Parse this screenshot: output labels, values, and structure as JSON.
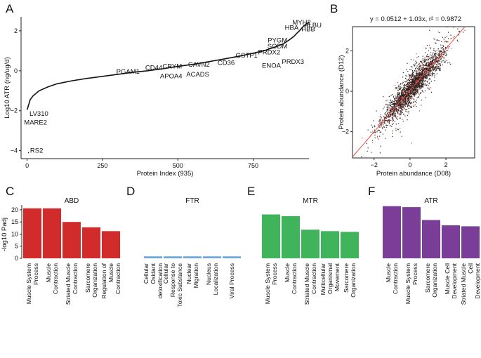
{
  "panels": [
    {
      "letter": "A",
      "type": "line",
      "ylabel": "Log10 ATR (ng/ug/d)",
      "xlabel": "Protein Index (935)",
      "x_ticks": [
        0,
        250,
        500,
        750
      ],
      "y_ticks": [
        -4,
        -2,
        0,
        2
      ],
      "xlim": [
        -20,
        935
      ],
      "ylim": [
        -4.4,
        2.7
      ],
      "series": {
        "x": [
          0,
          5,
          10,
          20,
          40,
          70,
          100,
          150,
          200,
          250,
          300,
          350,
          400,
          450,
          500,
          550,
          600,
          650,
          700,
          750,
          790,
          820,
          850,
          870,
          885,
          895,
          905,
          912,
          918,
          925,
          930,
          935
        ],
        "y": [
          -1.95,
          -1.72,
          -1.45,
          -1.25,
          -1.0,
          -0.8,
          -0.65,
          -0.5,
          -0.38,
          -0.28,
          -0.18,
          -0.08,
          0.0,
          0.1,
          0.22,
          0.32,
          0.45,
          0.58,
          0.72,
          0.88,
          1.02,
          1.18,
          1.35,
          1.55,
          1.72,
          1.88,
          2.02,
          2.15,
          2.25,
          2.32,
          2.38,
          2.45
        ]
      },
      "labels": [
        {
          "text": "MYH2",
          "x": 880,
          "y": 2.32
        },
        {
          "text": "ALBU",
          "x": 919,
          "y": 2.18
        },
        {
          "text": "HBA",
          "x": 855,
          "y": 2.05
        },
        {
          "text": "HBB",
          "x": 910,
          "y": 1.98
        },
        {
          "text": "PYGM",
          "x": 798,
          "y": 1.42
        },
        {
          "text": "SODM",
          "x": 797,
          "y": 1.12
        },
        {
          "text": "PRDX2",
          "x": 766,
          "y": 0.82
        },
        {
          "text": "GSTP1",
          "x": 692,
          "y": 0.67
        },
        {
          "text": "PRDX3",
          "x": 845,
          "y": 0.35
        },
        {
          "text": "CD36",
          "x": 632,
          "y": 0.3
        },
        {
          "text": "ENOA",
          "x": 779,
          "y": 0.15
        },
        {
          "text": "CAVN2",
          "x": 534,
          "y": 0.2
        },
        {
          "text": "CRYM",
          "x": 449,
          "y": 0.12
        },
        {
          "text": "CD44",
          "x": 392,
          "y": 0.04
        },
        {
          "text": "PGAM1",
          "x": 296,
          "y": -0.15
        },
        {
          "text": "APOA4",
          "x": 441,
          "y": -0.38
        },
        {
          "text": "ACADS",
          "x": 528,
          "y": -0.28
        },
        {
          "text": "LV310",
          "x": 8,
          "y": -2.25
        },
        {
          "text": "MARE2",
          "x": -10,
          "y": -2.7
        },
        {
          "text": "RS2",
          "x": 10,
          "y": -4.1
        }
      ]
    },
    {
      "letter": "B",
      "type": "scatter",
      "equation": "y = 0.0512 + 1.03x, r² = 0.9872",
      "xlabel": "Protein abundance (D08)",
      "ylabel": "Protein abundance (D12)",
      "x_ticks": [
        -2,
        0,
        2
      ],
      "y_ticks": [
        -2,
        0,
        2
      ],
      "xlim": [
        -3.2,
        3.6
      ],
      "ylim": [
        -3.3,
        3.2
      ],
      "fit": {
        "intercept": 0.0512,
        "slope": 1.03
      }
    },
    {
      "letter": "C",
      "type": "bar",
      "title": "ABD",
      "ylabel": "-log10 Padj",
      "y_ticks": [
        0,
        5,
        10,
        15,
        20
      ],
      "ylim": [
        0,
        22
      ],
      "color": "#d22b2b",
      "categories": [
        "Muscle System Process",
        "Muscle Contraction",
        "Striated Muscle Contraction",
        "Sarcomere Organization",
        "Regulation of Muscle Contraction"
      ],
      "values": [
        20.6,
        20.6,
        15.0,
        12.8,
        11.2
      ]
    },
    {
      "letter": "D",
      "type": "bar",
      "title": "FTR",
      "color": "#6fa8dc",
      "categories": [
        "Cellular Oxidant detoxification",
        "Cellular Response to Toxic Substance",
        "Nuclear Migration",
        "Nucleus Localization",
        "Viral Process"
      ],
      "values": [
        0.8,
        0.8,
        0.8,
        0.8,
        0.8
      ]
    },
    {
      "letter": "E",
      "type": "bar",
      "title": "MTR",
      "color": "#3fb45a",
      "categories": [
        "Muscle System Process",
        "Muscle Contraction",
        "Striated Muscle Contraction",
        "Multicellular Organismal Movement",
        "Sarcomere Organization"
      ],
      "values": [
        18.1,
        17.4,
        11.8,
        11.2,
        10.9
      ]
    },
    {
      "letter": "F",
      "type": "bar",
      "title": "ATR",
      "color": "#7a3d98",
      "categories": [
        "Muscle Contraction",
        "Muscle System Process",
        "Sarcomere Organization",
        "Muscle Cell Development",
        "Striated Muscle Cell Development"
      ],
      "values": [
        21.5,
        21.1,
        15.8,
        13.6,
        13.2
      ]
    }
  ]
}
